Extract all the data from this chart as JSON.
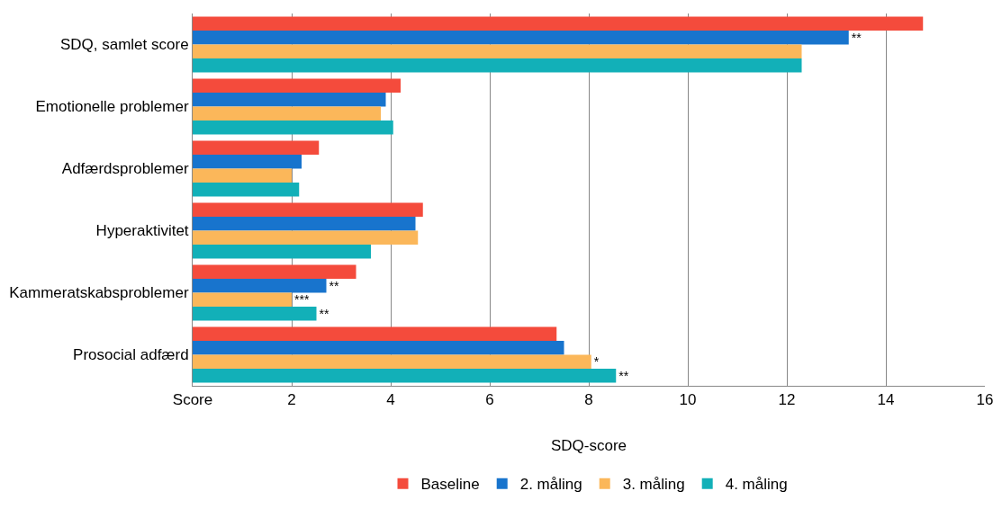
{
  "chart_data": {
    "type": "bar",
    "orientation": "horizontal",
    "xlabel": "SDQ-score",
    "categories": [
      "SDQ, samlet score",
      "Emotionelle problemer",
      "Adfærdsproblemer",
      "Hyperaktivitet",
      "Kammeratskabsproblemer",
      "Prosocial adfærd"
    ],
    "series": [
      {
        "name": "Baseline",
        "color": "#f44b3c",
        "values": [
          14.75,
          4.2,
          2.55,
          4.65,
          3.3,
          7.35
        ]
      },
      {
        "name": "2. måling",
        "color": "#1874cd",
        "values": [
          13.25,
          3.9,
          2.2,
          4.5,
          2.7,
          7.5
        ],
        "value_labels": [
          "**",
          null,
          null,
          null,
          "**",
          null
        ]
      },
      {
        "name": "3. måling",
        "color": "#fbb75a",
        "values": [
          12.3,
          3.8,
          2.0,
          4.55,
          2.0,
          8.05
        ],
        "value_labels": [
          null,
          null,
          null,
          null,
          "***",
          "*"
        ]
      },
      {
        "name": "4. måling",
        "color": "#12b0b8",
        "values": [
          12.3,
          4.05,
          2.15,
          3.6,
          2.5,
          8.55
        ],
        "value_labels": [
          null,
          null,
          null,
          null,
          "**",
          "**"
        ]
      }
    ],
    "xlim": [
      0,
      16
    ],
    "xticks": [
      {
        "value": 0,
        "label": "Score"
      },
      2,
      4,
      6,
      8,
      10,
      12,
      14,
      16
    ],
    "grid": "x",
    "legend": "bottom"
  }
}
